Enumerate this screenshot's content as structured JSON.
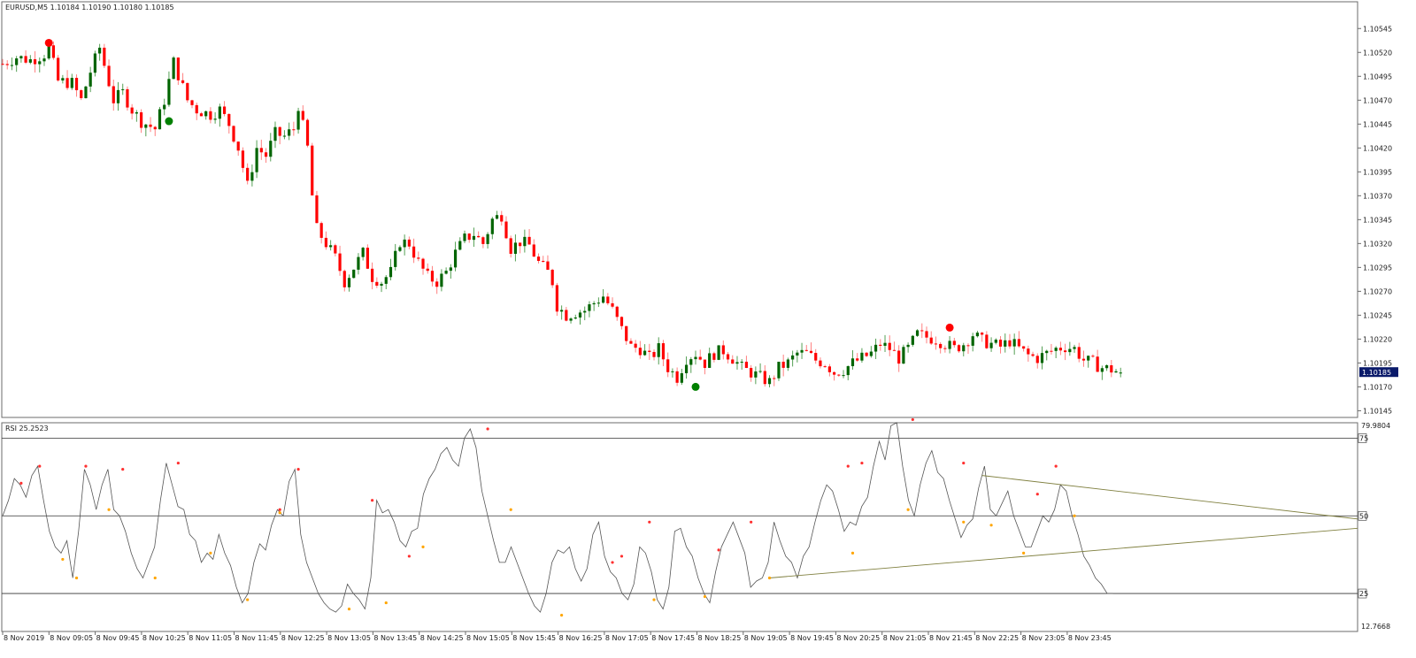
{
  "colors": {
    "background": "#ffffff",
    "frame": "#6b6b6b",
    "bull": "#006400",
    "bear": "#ff0000",
    "wick_bull": "#55a055",
    "wick_bear": "#ff8080",
    "signal_sell": "#ff0000",
    "signal_buy": "#008000",
    "rsi_line": "#555555",
    "rsi_peak": "#ff3030",
    "rsi_trough": "#ffa500",
    "trendline": "#808040",
    "level_line": "#333333",
    "price_badge_bg": "#0a1a6a",
    "axis_text": "#1a1a1a",
    "time_text": "#1a1a6a"
  },
  "chart_data": [
    {
      "type": "candlestick",
      "title": "EURUSD,M5  1.10184 1.10190 1.10180 1.10185",
      "symbol": "EURUSD,M5",
      "ohlc_header": [
        "1.10184",
        "1.10190",
        "1.10180",
        "1.10185"
      ],
      "ylim": [
        1.10138,
        1.10573
      ],
      "y_ticks": [
        "1.10545",
        "1.10520",
        "1.10495",
        "1.10470",
        "1.10445",
        "1.10420",
        "1.10395",
        "1.10370",
        "1.10345",
        "1.10320",
        "1.10295",
        "1.10270",
        "1.10245",
        "1.10220",
        "1.10195",
        "1.10170",
        "1.10145"
      ],
      "current_price": "1.10185",
      "x_labels": [
        "8 Nov 2019",
        "8 Nov 09:05",
        "8 Nov 09:45",
        "8 Nov 10:25",
        "8 Nov 11:05",
        "8 Nov 11:45",
        "8 Nov 12:25",
        "8 Nov 13:05",
        "8 Nov 13:45",
        "8 Nov 14:25",
        "8 Nov 15:05",
        "8 Nov 15:45",
        "8 Nov 16:25",
        "8 Nov 17:05",
        "8 Nov 17:45",
        "8 Nov 18:25",
        "8 Nov 19:05",
        "8 Nov 19:45",
        "8 Nov 20:25",
        "8 Nov 21:05",
        "8 Nov 21:45",
        "8 Nov 22:25",
        "8 Nov 23:05",
        "8 Nov 23:45"
      ],
      "bar_minutes": 5,
      "keyframes": [
        [
          0,
          1.10508
        ],
        [
          3,
          1.10515
        ],
        [
          6,
          1.10512
        ],
        [
          9,
          1.10518
        ],
        [
          10,
          1.10525
        ],
        [
          12,
          1.1049
        ],
        [
          15,
          1.10488
        ],
        [
          17,
          1.1047
        ],
        [
          19,
          1.105
        ],
        [
          21,
          1.10525
        ],
        [
          24,
          1.1047
        ],
        [
          26,
          1.10478
        ],
        [
          28,
          1.1046
        ],
        [
          30,
          1.10448
        ],
        [
          33,
          1.1044
        ],
        [
          35,
          1.1047
        ],
        [
          37,
          1.1051
        ],
        [
          40,
          1.1047
        ],
        [
          42,
          1.1046
        ],
        [
          45,
          1.10455
        ],
        [
          47,
          1.1046
        ],
        [
          49,
          1.10445
        ],
        [
          51,
          1.1042
        ],
        [
          53,
          1.1038
        ],
        [
          55,
          1.1042
        ],
        [
          57,
          1.10412
        ],
        [
          59,
          1.10435
        ],
        [
          61,
          1.10432
        ],
        [
          63,
          1.1044
        ],
        [
          64,
          1.10465
        ],
        [
          66,
          1.1042
        ],
        [
          67,
          1.1037
        ],
        [
          68,
          1.10335
        ],
        [
          70,
          1.1032
        ],
        [
          72,
          1.10305
        ],
        [
          74,
          1.1028
        ],
        [
          76,
          1.10295
        ],
        [
          78,
          1.1031
        ],
        [
          80,
          1.10285
        ],
        [
          82,
          1.1028
        ],
        [
          84,
          1.1029
        ],
        [
          86,
          1.10322
        ],
        [
          88,
          1.1032
        ],
        [
          90,
          1.103
        ],
        [
          92,
          1.10285
        ],
        [
          94,
          1.1028
        ],
        [
          96,
          1.1029
        ],
        [
          98,
          1.1031
        ],
        [
          100,
          1.10325
        ],
        [
          102,
          1.1033
        ],
        [
          104,
          1.1032
        ],
        [
          106,
          1.10345
        ],
        [
          108,
          1.1035
        ],
        [
          110,
          1.10315
        ],
        [
          112,
          1.10322
        ],
        [
          114,
          1.10318
        ],
        [
          116,
          1.103
        ],
        [
          118,
          1.1029
        ],
        [
          119,
          1.1028
        ],
        [
          120,
          1.10255
        ],
        [
          122,
          1.10245
        ],
        [
          124,
          1.10248
        ],
        [
          126,
          1.1025
        ],
        [
          128,
          1.10258
        ],
        [
          130,
          1.10265
        ],
        [
          132,
          1.1025
        ],
        [
          134,
          1.1023
        ],
        [
          136,
          1.10212
        ],
        [
          138,
          1.1021
        ],
        [
          140,
          1.102
        ],
        [
          142,
          1.1021
        ],
        [
          144,
          1.1019
        ],
        [
          146,
          1.1018
        ],
        [
          148,
          1.102
        ],
        [
          150,
          1.10205
        ],
        [
          152,
          1.10195
        ],
        [
          154,
          1.10205
        ],
        [
          156,
          1.10208
        ],
        [
          158,
          1.102
        ],
        [
          160,
          1.1019
        ],
        [
          162,
          1.10185
        ],
        [
          164,
          1.1018
        ],
        [
          166,
          1.10175
        ],
        [
          168,
          1.1019
        ],
        [
          170,
          1.10195
        ],
        [
          172,
          1.10205
        ],
        [
          174,
          1.10205
        ],
        [
          176,
          1.10198
        ],
        [
          178,
          1.10195
        ],
        [
          180,
          1.10185
        ],
        [
          182,
          1.10188
        ],
        [
          184,
          1.10195
        ],
        [
          186,
          1.102
        ],
        [
          188,
          1.10205
        ],
        [
          190,
          1.10215
        ],
        [
          192,
          1.1021
        ],
        [
          194,
          1.102
        ],
        [
          196,
          1.1021
        ],
        [
          198,
          1.10225
        ],
        [
          200,
          1.10222
        ],
        [
          202,
          1.1022
        ],
        [
          204,
          1.10215
        ],
        [
          206,
          1.1021
        ],
        [
          208,
          1.10215
        ],
        [
          210,
          1.10225
        ],
        [
          212,
          1.10218
        ],
        [
          214,
          1.10215
        ],
        [
          216,
          1.10212
        ],
        [
          218,
          1.10218
        ],
        [
          220,
          1.1021
        ],
        [
          222,
          1.10203
        ],
        [
          224,
          1.102
        ],
        [
          226,
          1.10205
        ],
        [
          228,
          1.1021
        ],
        [
          230,
          1.10212
        ],
        [
          232,
          1.1021
        ],
        [
          234,
          1.10198
        ],
        [
          236,
          1.10195
        ],
        [
          238,
          1.1019
        ],
        [
          240,
          1.10188
        ],
        [
          242,
          1.10185
        ]
      ],
      "sell_signals": [
        [
          10,
          1.1053
        ],
        [
          205,
          1.10232
        ]
      ],
      "buy_signals": [
        [
          36,
          1.10448
        ],
        [
          150,
          1.1017
        ]
      ]
    },
    {
      "type": "line",
      "title": "RSI 25.2523",
      "ylim": [
        12.7668,
        79.9804
      ],
      "y_max_label": "79.9804",
      "y_min_label": "12.7668",
      "levels": [
        75,
        50,
        25
      ],
      "series": [
        {
          "values": [
            50,
            55,
            62,
            60,
            56,
            63,
            66,
            55,
            45,
            40,
            38,
            42,
            30,
            45,
            65,
            60,
            52,
            60,
            65,
            52,
            50,
            45,
            38,
            33,
            30,
            35,
            40,
            55,
            67,
            60,
            53,
            52,
            44,
            42,
            35,
            38,
            36,
            44,
            38,
            34,
            27,
            22,
            25,
            35,
            41,
            39,
            47,
            52,
            50,
            61,
            65,
            44,
            35,
            30,
            25,
            22,
            20,
            19,
            21,
            28,
            25,
            23,
            20,
            30,
            55,
            51,
            52,
            48,
            42,
            40,
            45,
            46,
            57,
            62,
            65,
            70,
            72,
            68,
            66,
            75,
            78,
            72,
            58,
            50,
            42,
            35,
            35,
            40,
            35,
            30,
            25,
            21,
            19,
            25,
            35,
            39,
            38,
            40,
            33,
            29,
            33,
            44,
            48,
            37,
            32,
            30,
            25,
            23,
            28,
            40,
            38,
            32,
            23,
            20,
            27,
            45,
            46,
            40,
            37,
            30,
            25,
            22,
            32,
            40,
            44,
            48,
            43,
            38,
            27,
            29,
            30,
            35,
            48,
            42,
            37,
            35,
            30,
            37,
            40,
            48,
            55,
            60,
            58,
            52,
            45,
            48,
            47,
            53,
            56,
            66,
            74,
            68,
            79,
            80,
            66,
            55,
            50,
            60,
            67,
            71,
            64,
            62,
            55,
            49,
            43,
            47,
            49,
            59,
            66,
            52,
            50,
            54,
            58,
            50,
            45,
            40,
            40,
            45,
            50,
            48,
            52,
            60,
            58,
            50,
            44,
            37,
            34,
            30,
            28,
            25,
            25
          ]
        }
      ],
      "peaks": [
        [
          4,
          60.5
        ],
        [
          8,
          66
        ],
        [
          18,
          66
        ],
        [
          26,
          65
        ],
        [
          38,
          67
        ],
        [
          60,
          52
        ],
        [
          64,
          65
        ],
        [
          80,
          55
        ],
        [
          88,
          37
        ],
        [
          105,
          78
        ],
        [
          132,
          35
        ],
        [
          134,
          37
        ],
        [
          140,
          48
        ],
        [
          155,
          39
        ],
        [
          162,
          48
        ],
        [
          183,
          66
        ],
        [
          186,
          67
        ],
        [
          197,
          81
        ],
        [
          208,
          67
        ],
        [
          224,
          57
        ],
        [
          228,
          66
        ]
      ],
      "troughs": [
        [
          13,
          36
        ],
        [
          16,
          30
        ],
        [
          23,
          52
        ],
        [
          33,
          30
        ],
        [
          45,
          38
        ],
        [
          53,
          23
        ],
        [
          60,
          51
        ],
        [
          75,
          20
        ],
        [
          83,
          22
        ],
        [
          91,
          40
        ],
        [
          110,
          52
        ],
        [
          121,
          18
        ],
        [
          141,
          23
        ],
        [
          152,
          24
        ],
        [
          166,
          30
        ],
        [
          184,
          38
        ],
        [
          196,
          52
        ],
        [
          208,
          48
        ],
        [
          214,
          47
        ],
        [
          221,
          38
        ],
        [
          232,
          50
        ]
      ],
      "trendlines": [
        {
          "from": [
            166,
            30
          ],
          "to": [
            302,
            46
          ]
        },
        {
          "from": [
            212,
            63
          ],
          "to": [
            302,
            49
          ]
        }
      ]
    }
  ]
}
